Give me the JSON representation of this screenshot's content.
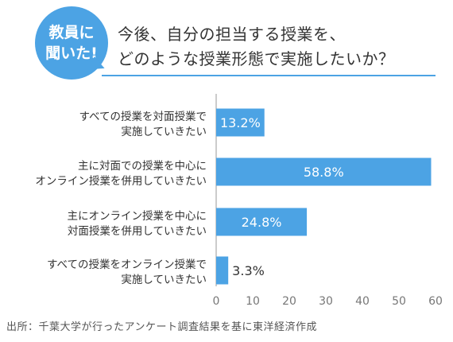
{
  "badge": {
    "line1": "教員に",
    "line2": "聞いた!"
  },
  "title": {
    "line1": "今後、自分の担当する授業を、",
    "line2": "どのような授業形態で実施したいか？"
  },
  "source": "出所：千葉大学が行ったアンケート調査結果を基に東洋経済作成",
  "colors": {
    "accent": "#4ca3e4",
    "bar": "#4ca3e4"
  },
  "chart_data": {
    "type": "bar",
    "orientation": "horizontal",
    "categories": [
      [
        "すべての授業を対面授業で",
        "実施していきたい"
      ],
      [
        "主に対面での授業を中心に",
        "オンライン授業を併用していきたい"
      ],
      [
        "主にオンライン授業を中心に",
        "対面授業を併用していきたい"
      ],
      [
        "すべての授業をオンライン授業で",
        "実施していきたい"
      ]
    ],
    "values": [
      13.2,
      58.8,
      24.8,
      3.3
    ],
    "data_labels": [
      "13.2%",
      "58.8%",
      "24.8%",
      "3.3%"
    ],
    "xlim": [
      0,
      60
    ],
    "xticks": [
      0,
      10,
      20,
      30,
      40,
      50,
      60
    ],
    "grid": false
  }
}
